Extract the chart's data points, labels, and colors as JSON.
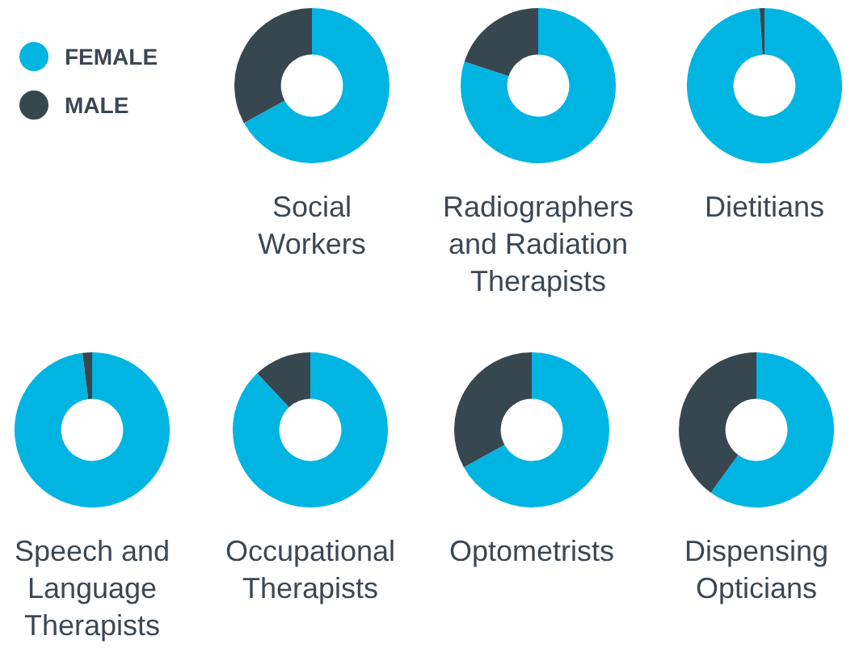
{
  "chart_data": [
    {
      "type": "donut",
      "title": "Social Workers",
      "categories": [
        "FEMALE",
        "MALE"
      ],
      "values": [
        67,
        33
      ],
      "colors": [
        "#00b5e2",
        "#36474f"
      ],
      "legend": "top left"
    },
    {
      "type": "donut",
      "title": "Radiographers and Radiation Therapists",
      "categories": [
        null,
        null
      ],
      "values": [
        80,
        20
      ],
      "colors": [
        "#00b5e2",
        "#36474f"
      ]
    },
    {
      "type": "donut",
      "title": "Dietitians",
      "categories": [
        null,
        null
      ],
      "values": [
        99,
        1
      ],
      "colors": [
        "#00b5e2",
        "#36474f"
      ]
    },
    {
      "type": "donut",
      "title": "Speech and Language Therapists",
      "categories": [
        null,
        null
      ],
      "values": [
        98,
        2
      ],
      "colors": [
        "#00b5e2",
        "#36474f"
      ]
    },
    {
      "type": "donut",
      "title": "Occupational Therapists",
      "categories": [
        null,
        null
      ],
      "values": [
        88,
        12
      ],
      "colors": [
        "#00b5e2",
        "#36474f"
      ]
    },
    {
      "type": "donut",
      "title": "Optometrists",
      "categories": [
        null,
        null
      ],
      "values": [
        67,
        33
      ],
      "colors": [
        "#00b5e2",
        "#36474f"
      ]
    },
    {
      "type": "donut",
      "title": "Dispensing Opticians",
      "categories": [
        null,
        null
      ],
      "values": [
        60,
        40
      ],
      "colors": [
        "#00b5e2",
        "#36474f"
      ]
    }
  ]
}
